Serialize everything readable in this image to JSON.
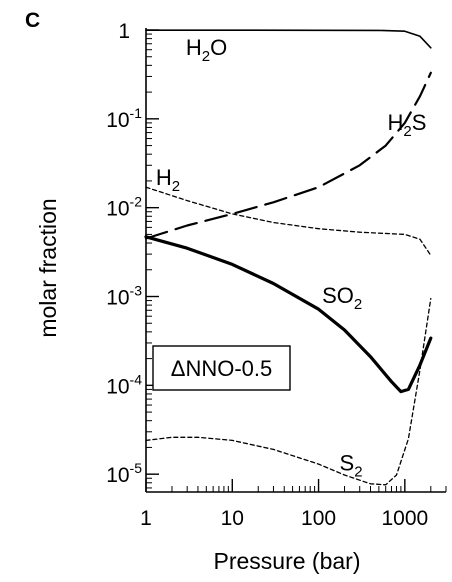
{
  "chart_data": {
    "type": "line",
    "panel_label": "C",
    "xlabel": "Pressure (bar)",
    "ylabel": "molar fraction",
    "xscale": "log",
    "yscale": "log",
    "xlim": [
      1,
      3000
    ],
    "ylim": [
      6.3e-06,
      1.0
    ],
    "x_ticks": [
      {
        "value": 1,
        "label": "1"
      },
      {
        "value": 10,
        "label": "10"
      },
      {
        "value": 100,
        "label": "100"
      },
      {
        "value": 1000,
        "label": "1000"
      }
    ],
    "y_ticks": [
      {
        "value": 1,
        "base": "1",
        "exp": ""
      },
      {
        "value": 0.1,
        "base": "10",
        "exp": "-1"
      },
      {
        "value": 0.01,
        "base": "10",
        "exp": "-2"
      },
      {
        "value": 0.001,
        "base": "10",
        "exp": "-3"
      },
      {
        "value": 0.0001,
        "base": "10",
        "exp": "-4"
      },
      {
        "value": 1e-05,
        "base": "10",
        "exp": "-5"
      }
    ],
    "annotation": "ΔNNO-0.5",
    "grid": false,
    "series": [
      {
        "name": "H2O",
        "label_main": "H",
        "label_sub": "2",
        "label_tail": "O",
        "label_at": [
          2.9,
          0.52
        ],
        "style": "solid-thin",
        "x": [
          1,
          10,
          100,
          500,
          1000,
          1500,
          2000
        ],
        "y": [
          0.995,
          0.995,
          0.993,
          0.99,
          0.97,
          0.85,
          0.63
        ]
      },
      {
        "name": "H2S",
        "label_main": "H",
        "label_sub": "2",
        "label_tail": "S",
        "label_at": [
          630,
          0.075
        ],
        "style": "long-dash",
        "x": [
          1,
          3,
          10,
          30,
          100,
          300,
          600,
          1000,
          1500,
          2000
        ],
        "y": [
          0.0045,
          0.0063,
          0.0085,
          0.0115,
          0.017,
          0.03,
          0.05,
          0.09,
          0.18,
          0.33
        ]
      },
      {
        "name": "H2",
        "label_main": "H",
        "label_sub": "2",
        "label_tail": "",
        "label_at": [
          1.3,
          0.018
        ],
        "style": "short-dash",
        "x": [
          1,
          3,
          10,
          30,
          100,
          300,
          1000,
          1500,
          2000
        ],
        "y": [
          0.017,
          0.012,
          0.0085,
          0.0068,
          0.0058,
          0.0053,
          0.005,
          0.0044,
          0.0029
        ]
      },
      {
        "name": "SO2",
        "label_main": "SO",
        "label_sub": "2",
        "label_tail": "",
        "label_at": [
          110,
          0.00085
        ],
        "style": "solid-thick",
        "x": [
          1,
          3,
          10,
          30,
          100,
          200,
          400,
          700,
          900,
          1100,
          1500,
          2000
        ],
        "y": [
          0.0047,
          0.0035,
          0.0023,
          0.0014,
          0.00072,
          0.00042,
          0.00021,
          0.00011,
          8.5e-05,
          9e-05,
          0.00017,
          0.00034
        ]
      },
      {
        "name": "S2",
        "label_main": "S",
        "label_sub": "2",
        "label_tail": "",
        "label_at": [
          175,
          1.1e-05
        ],
        "style": "short-dash",
        "x": [
          1,
          2,
          4,
          10,
          30,
          100,
          200,
          400,
          600,
          800,
          1100,
          1500,
          2000
        ],
        "y": [
          2.4e-05,
          2.6e-05,
          2.6e-05,
          2.4e-05,
          1.9e-05,
          1.3e-05,
          9.8e-06,
          7.8e-06,
          7.6e-06,
          9.8e-06,
          2.5e-05,
          0.00015,
          0.00095
        ]
      }
    ]
  }
}
